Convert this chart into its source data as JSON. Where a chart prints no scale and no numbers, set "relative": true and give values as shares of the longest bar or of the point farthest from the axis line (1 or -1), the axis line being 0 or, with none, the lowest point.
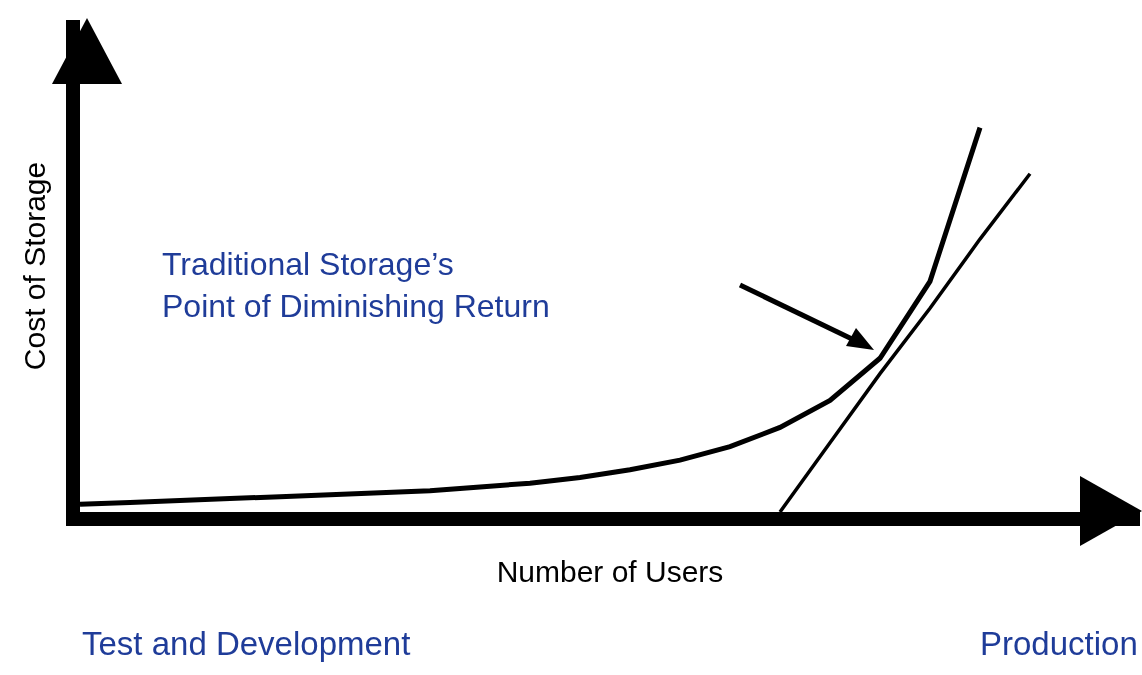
{
  "chart_data": {
    "type": "line",
    "relative": true,
    "xlabel": "Number of Users",
    "ylabel": "Cost of Storage",
    "categories": [
      null,
      null,
      null,
      null,
      null,
      null,
      null,
      null,
      null,
      null,
      null,
      null,
      null,
      null,
      null,
      null,
      null,
      null,
      null,
      null,
      null
    ],
    "series": [
      {
        "color": "#000000",
        "values": [
          0.02,
          0.025,
          0.03,
          0.035,
          0.04,
          0.045,
          0.05,
          0.055,
          0.065,
          0.075,
          0.09,
          0.11,
          0.135,
          0.17,
          0.22,
          0.29,
          0.4,
          0.6,
          1.0,
          null,
          null
        ]
      },
      {
        "color": "#000000",
        "values": [
          null,
          null,
          null,
          null,
          null,
          null,
          null,
          null,
          null,
          null,
          null,
          null,
          null,
          null,
          0,
          0.18,
          0.36,
          0.53,
          0.71,
          0.88,
          null
        ]
      }
    ],
    "annotations": [
      "Traditional Storage’s\nPoint of Diminishing Return",
      "Test and Development",
      "Production"
    ],
    "marker": "none",
    "line_style": "solid"
  }
}
